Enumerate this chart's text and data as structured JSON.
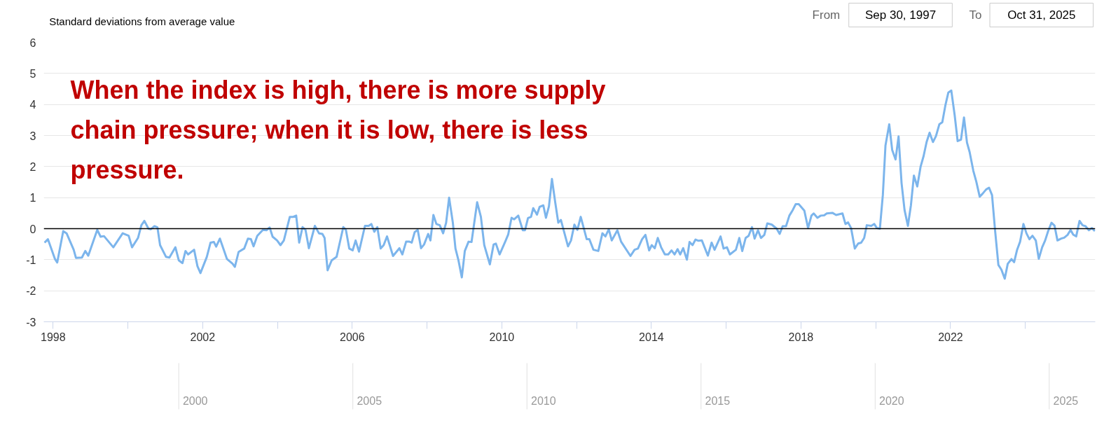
{
  "chart_data": [
    {
      "type": "line",
      "ylabel": "Standard deviations from average value",
      "annotations": [
        "When the index is high, there is more supply chain pressure; when it is low, there is less pressure.",
        "From",
        "Sep 30, 1997",
        "To",
        "Oct 31, 2025",
        "2000",
        "2005",
        "2010",
        "2015",
        "2020",
        "2025"
      ],
      "x": [
        1997.77,
        1997.86,
        1998.05,
        1998.11,
        1998.27,
        1998.36,
        1998.55,
        1998.61,
        1998.77,
        1998.86,
        1998.94,
        1999.18,
        1999.27,
        1999.36,
        1999.61,
        1999.86,
        2000.02,
        2000.11,
        2000.27,
        2000.36,
        2000.44,
        2000.55,
        2000.61,
        2000.71,
        2000.79,
        2000.86,
        2001.02,
        2001.11,
        2001.27,
        2001.36,
        2001.46,
        2001.54,
        2001.61,
        2001.77,
        2001.86,
        2001.94,
        2002.11,
        2002.21,
        2002.3,
        2002.36,
        2002.46,
        2002.65,
        2002.8,
        2002.86,
        2002.96,
        2003.11,
        2003.21,
        2003.29,
        2003.36,
        2003.46,
        2003.61,
        2003.71,
        2003.79,
        2003.87,
        2003.99,
        2004.08,
        2004.17,
        2004.33,
        2004.42,
        2004.5,
        2004.58,
        2004.67,
        2004.75,
        2004.84,
        2005.0,
        2005.11,
        2005.2,
        2005.26,
        2005.34,
        2005.45,
        2005.58,
        2005.76,
        2005.83,
        2005.92,
        2006.01,
        2006.09,
        2006.18,
        2006.34,
        2006.44,
        2006.51,
        2006.59,
        2006.67,
        2006.76,
        2006.84,
        2006.93,
        2007.09,
        2007.26,
        2007.34,
        2007.44,
        2007.53,
        2007.59,
        2007.67,
        2007.75,
        2007.84,
        2007.92,
        2008.03,
        2008.09,
        2008.17,
        2008.25,
        2008.34,
        2008.43,
        2008.51,
        2008.59,
        2008.69,
        2008.76,
        2008.84,
        2008.93,
        2009.01,
        2009.11,
        2009.19,
        2009.34,
        2009.44,
        2009.53,
        2009.68,
        2009.78,
        2009.84,
        2009.94,
        2010.09,
        2010.17,
        2010.26,
        2010.33,
        2010.44,
        2010.56,
        2010.62,
        2010.7,
        2010.78,
        2010.84,
        2010.94,
        2011.01,
        2011.11,
        2011.18,
        2011.26,
        2011.34,
        2011.43,
        2011.51,
        2011.58,
        2011.77,
        2011.85,
        2011.94,
        2012.02,
        2012.11,
        2012.27,
        2012.34,
        2012.45,
        2012.58,
        2012.69,
        2012.77,
        2012.86,
        2012.94,
        2013.09,
        2013.19,
        2013.44,
        2013.55,
        2013.64,
        2013.75,
        2013.84,
        2013.94,
        2014.01,
        2014.09,
        2014.17,
        2014.26,
        2014.36,
        2014.45,
        2014.54,
        2014.62,
        2014.7,
        2014.77,
        2014.85,
        2014.95,
        2015.02,
        2015.1,
        2015.18,
        2015.26,
        2015.35,
        2015.51,
        2015.61,
        2015.69,
        2015.85,
        2015.93,
        2016.02,
        2016.1,
        2016.26,
        2016.35,
        2016.43,
        2016.52,
        2016.6,
        2016.69,
        2016.76,
        2016.85,
        2016.93,
        2017.02,
        2017.1,
        2017.22,
        2017.35,
        2017.43,
        2017.51,
        2017.6,
        2017.69,
        2017.78,
        2017.86,
        2017.94,
        2018.09,
        2018.19,
        2018.28,
        2018.34,
        2018.44,
        2018.53,
        2018.62,
        2018.69,
        2018.84,
        2018.94,
        2019.11,
        2019.19,
        2019.26,
        2019.34,
        2019.44,
        2019.53,
        2019.61,
        2019.69,
        2019.76,
        2019.88,
        2019.96,
        2020.03,
        2020.11,
        2020.19,
        2020.26,
        2020.36,
        2020.44,
        2020.53,
        2020.61,
        2020.69,
        2020.77,
        2020.86,
        2020.94,
        2021.02,
        2021.11,
        2021.2,
        2021.28,
        2021.36,
        2021.44,
        2021.53,
        2021.61,
        2021.7,
        2021.78,
        2021.86,
        2021.94,
        2022.02,
        2022.11,
        2022.19,
        2022.28,
        2022.36,
        2022.44,
        2022.51,
        2022.61,
        2022.69,
        2022.78,
        2022.86,
        2022.95,
        2023.03,
        2023.11,
        2023.19,
        2023.28,
        2023.36,
        2023.45,
        2023.53,
        2023.63,
        2023.7,
        2023.78,
        2023.86,
        2023.95,
        2024.03,
        2024.11,
        2024.19,
        2024.28,
        2024.36,
        2024.45,
        2024.53,
        2024.61,
        2024.7,
        2024.78,
        2024.86,
        2024.96,
        2025.04,
        2025.13,
        2025.21,
        2025.28,
        2025.36,
        2025.45,
        2025.53,
        2025.61,
        2025.7,
        2025.78,
        2025.86
      ],
      "values": [
        -0.45,
        -0.34,
        -0.98,
        -1.09,
        -0.08,
        -0.15,
        -0.68,
        -0.94,
        -0.93,
        -0.72,
        -0.87,
        -0.04,
        -0.26,
        -0.24,
        -0.6,
        -0.15,
        -0.23,
        -0.6,
        -0.3,
        0.11,
        0.25,
        0.0,
        -0.02,
        0.08,
        0.04,
        -0.53,
        -0.91,
        -0.93,
        -0.6,
        -1.02,
        -1.11,
        -0.72,
        -0.83,
        -0.68,
        -1.21,
        -1.43,
        -0.91,
        -0.45,
        -0.43,
        -0.58,
        -0.32,
        -0.98,
        -1.13,
        -1.23,
        -0.75,
        -0.64,
        -0.32,
        -0.34,
        -0.57,
        -0.23,
        -0.04,
        -0.05,
        0.04,
        -0.26,
        -0.38,
        -0.53,
        -0.38,
        0.38,
        0.38,
        0.42,
        -0.45,
        0.05,
        -0.04,
        -0.63,
        0.09,
        -0.15,
        -0.17,
        -0.3,
        -1.34,
        -1.02,
        -0.91,
        0.05,
        -0.04,
        -0.64,
        -0.7,
        -0.38,
        -0.74,
        0.09,
        0.09,
        0.15,
        -0.1,
        0.05,
        -0.64,
        -0.53,
        -0.25,
        -0.88,
        -0.63,
        -0.83,
        -0.42,
        -0.42,
        -0.45,
        -0.11,
        -0.04,
        -0.63,
        -0.51,
        -0.17,
        -0.38,
        0.44,
        0.15,
        0.11,
        -0.15,
        0.19,
        1.0,
        0.19,
        -0.64,
        -1.02,
        -1.57,
        -0.72,
        -0.42,
        -0.43,
        0.85,
        0.38,
        -0.53,
        -1.15,
        -0.51,
        -0.48,
        -0.83,
        -0.42,
        -0.19,
        0.35,
        0.3,
        0.42,
        -0.05,
        -0.05,
        0.34,
        0.38,
        0.66,
        0.45,
        0.7,
        0.75,
        0.35,
        0.72,
        1.6,
        0.83,
        0.19,
        0.28,
        -0.57,
        -0.38,
        0.13,
        -0.04,
        0.38,
        -0.34,
        -0.34,
        -0.68,
        -0.72,
        -0.15,
        -0.25,
        -0.02,
        -0.38,
        -0.05,
        -0.42,
        -0.88,
        -0.68,
        -0.64,
        -0.34,
        -0.2,
        -0.7,
        -0.53,
        -0.63,
        -0.3,
        -0.6,
        -0.83,
        -0.83,
        -0.7,
        -0.83,
        -0.66,
        -0.83,
        -0.63,
        -1.0,
        -0.43,
        -0.53,
        -0.35,
        -0.39,
        -0.38,
        -0.87,
        -0.45,
        -0.68,
        -0.25,
        -0.64,
        -0.6,
        -0.83,
        -0.68,
        -0.3,
        -0.72,
        -0.3,
        -0.23,
        0.05,
        -0.32,
        -0.05,
        -0.3,
        -0.2,
        0.17,
        0.13,
        0.0,
        -0.17,
        0.08,
        0.08,
        0.42,
        0.6,
        0.79,
        0.79,
        0.58,
        0.02,
        0.42,
        0.49,
        0.35,
        0.42,
        0.43,
        0.49,
        0.51,
        0.44,
        0.49,
        0.15,
        0.2,
        0.02,
        -0.64,
        -0.48,
        -0.45,
        -0.3,
        0.11,
        0.09,
        0.15,
        0.02,
        0.0,
        1.09,
        2.68,
        3.36,
        2.53,
        2.23,
        2.97,
        1.47,
        0.6,
        0.09,
        0.75,
        1.71,
        1.36,
        2.0,
        2.34,
        2.79,
        3.09,
        2.79,
        2.98,
        3.36,
        3.43,
        3.96,
        4.38,
        4.45,
        3.66,
        2.82,
        2.87,
        3.58,
        2.77,
        2.47,
        1.86,
        1.51,
        1.03,
        1.13,
        1.26,
        1.32,
        1.08,
        -0.04,
        -1.17,
        -1.32,
        -1.61,
        -1.13,
        -0.98,
        -1.08,
        -0.68,
        -0.42,
        0.15,
        -0.15,
        -0.34,
        -0.23,
        -0.38,
        -0.97,
        -0.6,
        -0.38,
        -0.08,
        0.19,
        0.1,
        -0.38,
        -0.32,
        -0.29,
        -0.2,
        -0.04,
        -0.19,
        -0.25,
        0.25,
        0.11,
        0.08,
        -0.05,
        0.02,
        -0.08
      ],
      "color": "#7cb5ec",
      "xlim": [
        1997.75,
        2025.87
      ],
      "xticks": [
        1998,
        {
          "value": 2000,
          "label": null
        },
        2002,
        {
          "value": 2004,
          "label": null
        },
        2006,
        {
          "value": 2008,
          "label": null
        },
        2010,
        {
          "value": 2012,
          "label": null
        },
        2014,
        {
          "value": 2016,
          "label": null
        },
        2018,
        {
          "value": 2020,
          "label": null
        },
        2022,
        {
          "value": 2024,
          "label": null
        }
      ],
      "ylim": [
        -3,
        6
      ],
      "yticks": [
        -3,
        -2,
        -1,
        0,
        1,
        2,
        3,
        4,
        5,
        6
      ],
      "grid": "y",
      "ref_lines": [
        {
          "axis": "y",
          "value": 0,
          "color": "#000000"
        }
      ]
    }
  ]
}
